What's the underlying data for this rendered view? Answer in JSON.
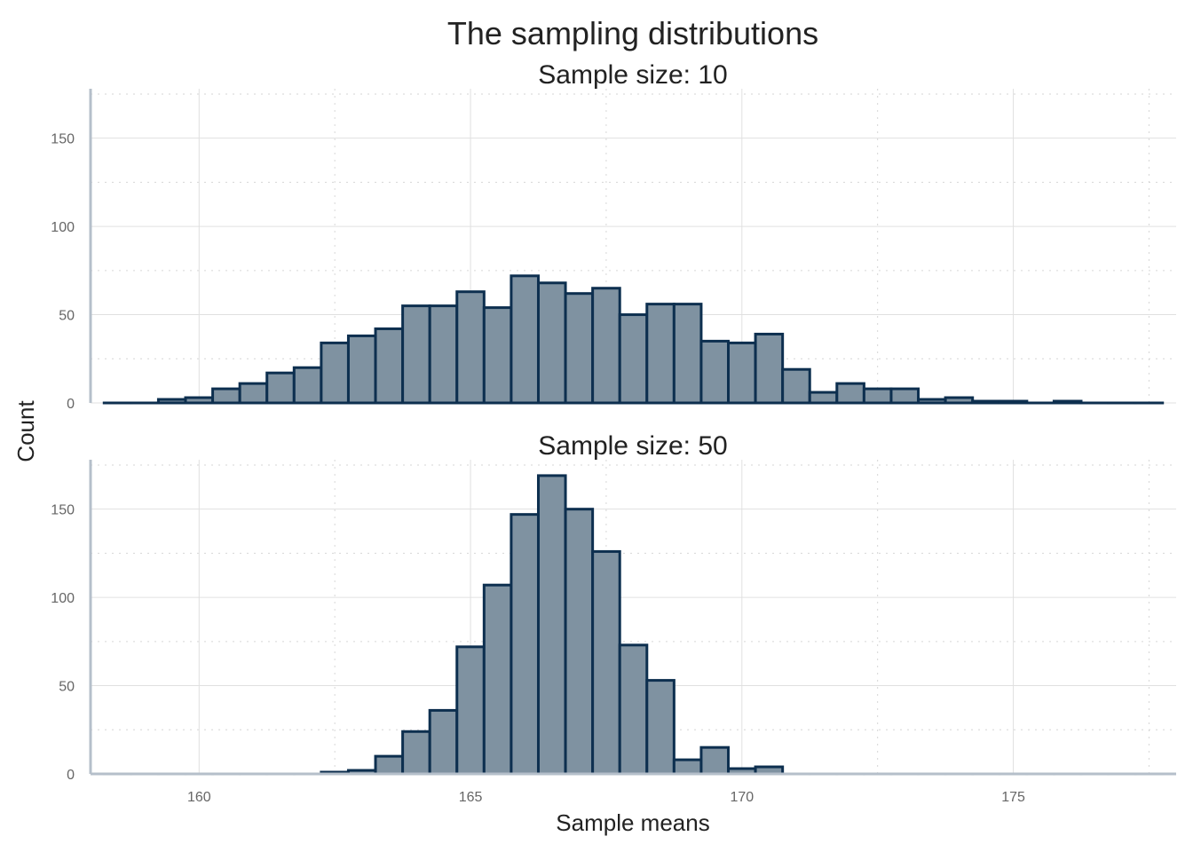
{
  "chart_data": {
    "type": "bar",
    "title": "The sampling distributions",
    "xlabel": "Sample means",
    "ylabel": "Count",
    "xlim": [
      158.0,
      178.0
    ],
    "ylim": [
      0,
      178
    ],
    "x_ticks": [
      160,
      165,
      170,
      175
    ],
    "y_ticks": [
      0,
      50,
      100,
      150
    ],
    "bin_width": 0.5,
    "grid": true,
    "panels": [
      {
        "title": "Sample size: 10",
        "bin_start": 158.25,
        "counts": [
          0,
          0,
          2,
          3,
          8,
          11,
          17,
          20,
          34,
          38,
          42,
          55,
          55,
          63,
          54,
          72,
          68,
          62,
          65,
          50,
          56,
          56,
          35,
          34,
          39,
          19,
          6,
          11,
          8,
          8,
          2,
          3,
          1,
          1,
          0,
          1,
          0,
          0,
          0
        ]
      },
      {
        "title": "Sample size: 50",
        "bin_start": 158.25,
        "counts": [
          0,
          0,
          0,
          0,
          0,
          0,
          0,
          0,
          1,
          2,
          10,
          24,
          36,
          72,
          107,
          147,
          169,
          150,
          126,
          73,
          53,
          8,
          15,
          3,
          4,
          0,
          0,
          0,
          0,
          0,
          0,
          0,
          0,
          0,
          0,
          0,
          0,
          0,
          0
        ]
      }
    ]
  }
}
